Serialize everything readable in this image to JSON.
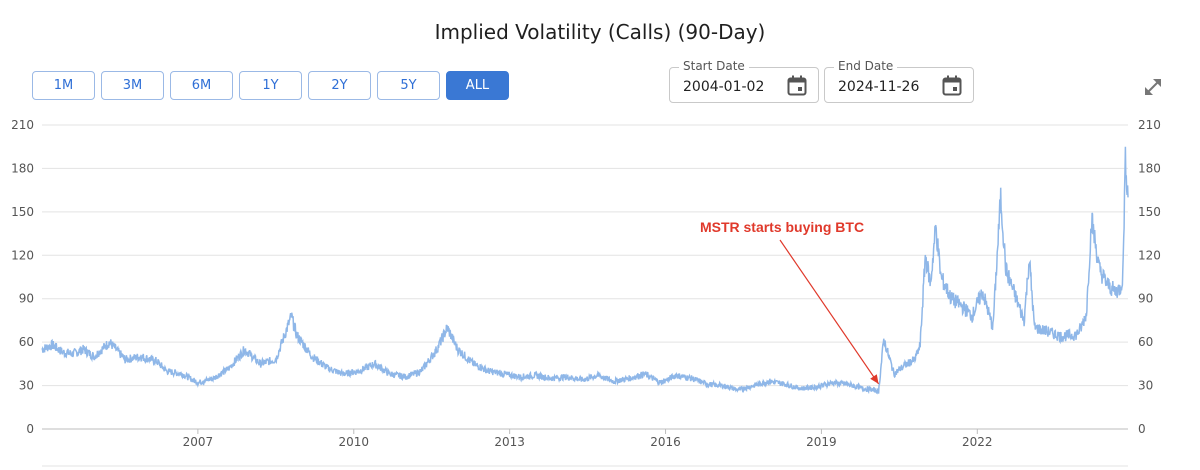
{
  "chart_data": {
    "type": "line",
    "title": "Implied Volatility (Calls) (90-Day)",
    "xlabel": "",
    "ylabel": "",
    "ylim": [
      0,
      210
    ],
    "xlim": [
      2004.0,
      2024.9
    ],
    "yticks": [
      "0",
      "30",
      "60",
      "90",
      "120",
      "150",
      "180",
      "210"
    ],
    "ytick_values": [
      0,
      30,
      60,
      90,
      120,
      150,
      180,
      210
    ],
    "xticks": [
      "2007",
      "2010",
      "2013",
      "2016",
      "2019",
      "2022"
    ],
    "xtick_values": [
      2007,
      2010,
      2013,
      2016,
      2019,
      2022
    ],
    "grid": true,
    "series": [
      {
        "name": "Implied Volatility (Calls) (90-Day)",
        "color": "#8fb7e8",
        "x": [
          2004.0,
          2004.2,
          2004.4,
          2004.6,
          2004.8,
          2005.0,
          2005.3,
          2005.6,
          2005.9,
          2006.2,
          2006.4,
          2006.7,
          2007.0,
          2007.3,
          2007.6,
          2007.9,
          2008.2,
          2008.5,
          2008.8,
          2008.9,
          2009.2,
          2009.5,
          2009.8,
          2010.1,
          2010.4,
          2010.7,
          2011.0,
          2011.3,
          2011.6,
          2011.8,
          2012.0,
          2012.3,
          2012.6,
          2012.9,
          2013.2,
          2013.5,
          2013.8,
          2014.1,
          2014.4,
          2014.7,
          2015.0,
          2015.3,
          2015.6,
          2015.9,
          2016.2,
          2016.5,
          2016.8,
          2017.1,
          2017.4,
          2017.7,
          2018.0,
          2018.3,
          2018.6,
          2018.9,
          2019.2,
          2019.5,
          2019.8,
          2020.0,
          2020.1,
          2020.2,
          2020.4,
          2020.6,
          2020.8,
          2020.9,
          2021.0,
          2021.1,
          2021.2,
          2021.3,
          2021.5,
          2021.7,
          2021.9,
          2022.1,
          2022.3,
          2022.45,
          2022.55,
          2022.7,
          2022.9,
          2023.0,
          2023.1,
          2023.3,
          2023.6,
          2023.9,
          2024.0,
          2024.1,
          2024.2,
          2024.35,
          2024.5,
          2024.65,
          2024.75,
          2024.8,
          2024.85,
          2024.9
        ],
        "values": [
          55,
          58,
          53,
          52,
          55,
          50,
          60,
          48,
          50,
          47,
          40,
          38,
          32,
          35,
          42,
          55,
          45,
          48,
          78,
          65,
          50,
          42,
          38,
          40,
          45,
          38,
          36,
          40,
          55,
          70,
          55,
          45,
          40,
          38,
          36,
          37,
          35,
          36,
          34,
          37,
          33,
          35,
          38,
          32,
          37,
          35,
          31,
          30,
          27,
          30,
          33,
          31,
          28,
          29,
          32,
          31,
          28,
          27,
          26,
          62,
          38,
          44,
          48,
          58,
          120,
          100,
          140,
          105,
          90,
          85,
          78,
          95,
          70,
          160,
          110,
          95,
          75,
          118,
          70,
          68,
          64,
          65,
          70,
          80,
          145,
          110,
          100,
          95,
          97,
          105,
          188,
          160
        ]
      }
    ],
    "annotations": [
      {
        "text": "MSTR starts buying BTC",
        "x": 2020.1,
        "y": 27,
        "color": "#e0392b"
      }
    ]
  },
  "controls": {
    "range_buttons": [
      "1M",
      "3M",
      "6M",
      "1Y",
      "2Y",
      "5Y",
      "ALL"
    ],
    "active_range": "ALL",
    "start_date_label": "Start Date",
    "start_date_value": "2004-01-02",
    "end_date_label": "End Date",
    "end_date_value": "2024-11-26"
  },
  "icons": {
    "calendar": "calendar-icon",
    "expand": "expand-icon"
  }
}
